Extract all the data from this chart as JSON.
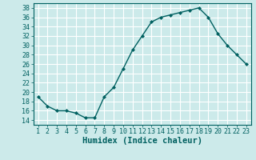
{
  "x": [
    1,
    2,
    3,
    4,
    5,
    6,
    7,
    8,
    9,
    10,
    11,
    12,
    13,
    14,
    15,
    16,
    17,
    18,
    19,
    20,
    21,
    22,
    23
  ],
  "y": [
    19,
    17,
    16,
    16,
    15.5,
    14.5,
    14.5,
    19,
    21,
    25,
    29,
    32,
    35,
    36,
    36.5,
    37,
    37.5,
    38,
    36,
    32.5,
    30,
    28,
    26
  ],
  "line_color": "#006060",
  "marker": "D",
  "marker_size": 2.0,
  "bg_color": "#cceaea",
  "grid_color": "#ffffff",
  "xlabel": "Humidex (Indice chaleur)",
  "xlim": [
    0.5,
    23.5
  ],
  "ylim": [
    13,
    39
  ],
  "yticks": [
    14,
    16,
    18,
    20,
    22,
    24,
    26,
    28,
    30,
    32,
    34,
    36,
    38
  ],
  "xticks": [
    1,
    2,
    3,
    4,
    5,
    6,
    7,
    8,
    9,
    10,
    11,
    12,
    13,
    14,
    15,
    16,
    17,
    18,
    19,
    20,
    21,
    22,
    23
  ],
  "xlabel_fontsize": 7.5,
  "tick_fontsize": 6.0,
  "linewidth": 1.0
}
